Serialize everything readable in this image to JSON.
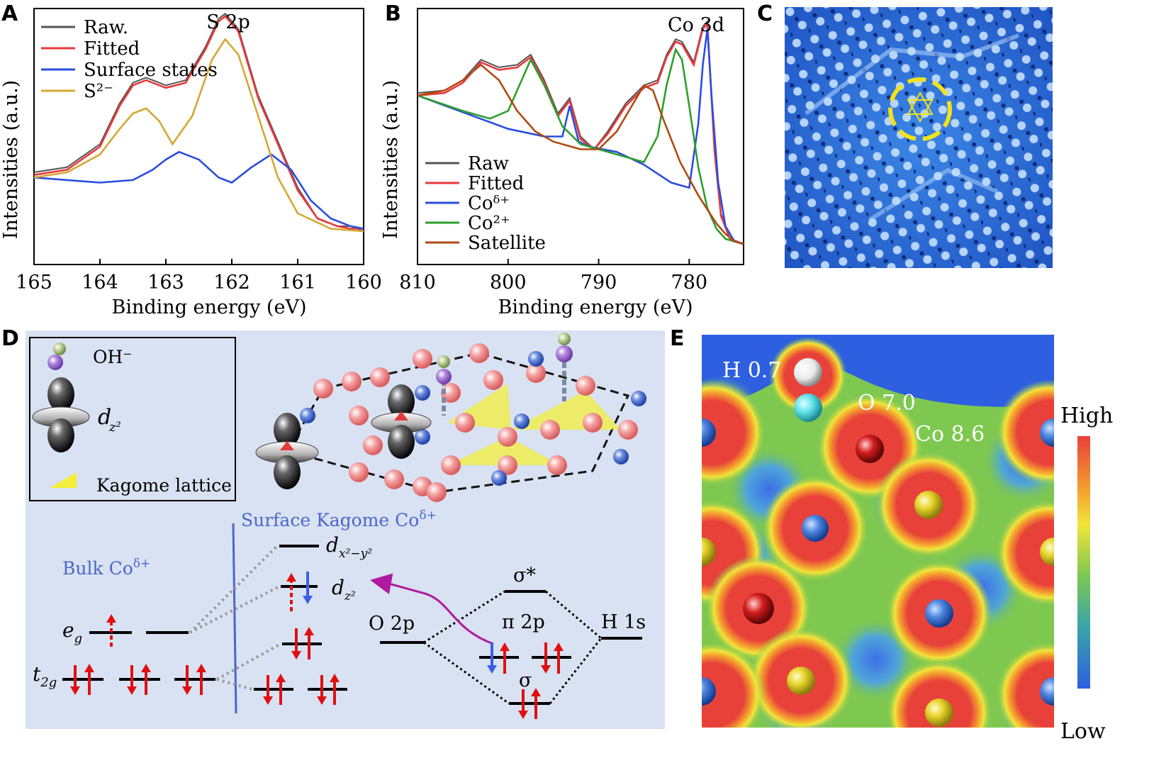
{
  "panels": {
    "a": "A",
    "b": "B",
    "c": "C",
    "d": "D",
    "e": "E"
  },
  "chart_data": [
    {
      "type": "line",
      "title": "S 2p",
      "xlabel": "Binding energy (eV)",
      "ylabel": "Intensities (a.u.)",
      "xlim": [
        165,
        160
      ],
      "ylim": [
        0,
        100
      ],
      "x_ticks": [
        "165",
        "164",
        "163",
        "162",
        "161",
        "160"
      ],
      "legend_position": "top-left",
      "series": [
        {
          "name": "Raw.",
          "color": "#555555",
          "x": [
            165,
            164.5,
            164,
            163.7,
            163.5,
            163.3,
            163,
            162.7,
            162.4,
            162.2,
            162.1,
            161.9,
            161.6,
            161.3,
            161,
            160.7,
            160.4,
            160.2,
            160
          ],
          "y": [
            36,
            38,
            47,
            63,
            71,
            73,
            70,
            72,
            85,
            96,
            98,
            92,
            66,
            48,
            30,
            18,
            15,
            15,
            13
          ]
        },
        {
          "name": "Fitted",
          "color": "#e8383b",
          "x": [
            165,
            164.5,
            164,
            163.7,
            163.5,
            163.3,
            163,
            162.7,
            162.4,
            162.2,
            162.1,
            161.9,
            161.6,
            161.3,
            161,
            160.7,
            160.4,
            160.2,
            160
          ],
          "y": [
            35,
            37,
            46,
            62,
            70,
            72,
            69,
            71,
            84,
            95,
            97,
            91,
            65,
            47,
            29,
            18,
            15,
            14,
            14
          ]
        },
        {
          "name": "Surface states",
          "color": "#2a4de0",
          "x": [
            165,
            164.5,
            164,
            163.5,
            163.2,
            163,
            162.8,
            162.5,
            162.2,
            162,
            161.7,
            161.4,
            161.1,
            160.8,
            160.5,
            160.2,
            160
          ],
          "y": [
            34,
            33,
            32,
            33,
            37,
            41,
            44,
            41,
            34,
            32,
            38,
            43,
            37,
            25,
            18,
            15,
            14
          ]
        },
        {
          "name": "S²⁻",
          "color": "#d4a832",
          "x": [
            165,
            164.5,
            164,
            163.7,
            163.5,
            163.3,
            163.1,
            162.9,
            162.6,
            162.3,
            162.1,
            161.9,
            161.6,
            161.3,
            161,
            160.5,
            160
          ],
          "y": [
            34,
            36,
            43,
            53,
            59,
            61,
            56,
            47,
            58,
            80,
            88,
            82,
            58,
            34,
            20,
            14,
            13
          ]
        }
      ]
    },
    {
      "type": "line",
      "title": "Co 3d",
      "xlabel": "Binding energy (eV)",
      "ylabel": "Intensities (a.u.)",
      "xlim": [
        810,
        774
      ],
      "ylim": [
        0,
        100
      ],
      "x_ticks": [
        "810",
        "800",
        "790",
        "780"
      ],
      "legend_position": "bottom-left",
      "series": [
        {
          "name": "Raw",
          "color": "#555555",
          "x": [
            810,
            807,
            805,
            803,
            801,
            799,
            797.5,
            796,
            794.5,
            793.2,
            792,
            790.5,
            789,
            787,
            785,
            783.5,
            782.5,
            781.5,
            780.8,
            779.5,
            778.5,
            778,
            777.2,
            776.5,
            775.5,
            774
          ],
          "y": [
            67,
            68,
            72,
            80,
            77,
            78,
            82,
            72,
            59,
            65,
            50,
            45,
            52,
            63,
            70,
            72,
            82,
            88,
            87,
            79,
            93,
            95,
            45,
            20,
            10,
            8
          ]
        },
        {
          "name": "Fitted",
          "color": "#e8383b",
          "x": [
            810,
            807,
            805,
            803,
            801,
            799,
            797.5,
            796,
            794.5,
            793.2,
            792,
            790.5,
            789,
            787,
            785,
            783.5,
            782.5,
            781.5,
            780.8,
            779.5,
            778.5,
            778,
            777.2,
            776.5,
            775.5,
            774
          ],
          "y": [
            66,
            67,
            71,
            79,
            76,
            77,
            81,
            71,
            58,
            64,
            49,
            45,
            51,
            62,
            69,
            71,
            81,
            87,
            86,
            78,
            92,
            94,
            44,
            19,
            10,
            8
          ]
        },
        {
          "name": "Coᵟ⁺",
          "color": "#2a4de0",
          "x": [
            810,
            800,
            796,
            794,
            793.2,
            792.2,
            791,
            788,
            785,
            782,
            780,
            779,
            778.5,
            778,
            777.5,
            776.8,
            776,
            775,
            774
          ],
          "y": [
            66,
            53,
            50,
            50,
            62,
            48,
            46,
            44,
            39,
            32,
            30,
            55,
            78,
            92,
            64,
            32,
            15,
            9,
            8
          ]
        },
        {
          "name": "Co²⁺",
          "color": "#2e9e2e",
          "x": [
            810,
            805,
            802,
            800,
            798.5,
            797.5,
            796,
            794,
            792,
            790,
            787,
            785,
            783.5,
            782.5,
            781.5,
            780.8,
            780,
            779,
            778,
            777,
            776,
            774
          ],
          "y": [
            66,
            60,
            57,
            60,
            72,
            80,
            70,
            54,
            47,
            45,
            42,
            40,
            50,
            70,
            84,
            80,
            62,
            38,
            22,
            14,
            10,
            8
          ]
        },
        {
          "name": "Satellite",
          "color": "#b04a12",
          "x": [
            810,
            807,
            805,
            803,
            801,
            799,
            797,
            795,
            792,
            790,
            788,
            786,
            785,
            784,
            783,
            781,
            779,
            777,
            776,
            775,
            774
          ],
          "y": [
            66,
            68,
            72,
            78,
            72,
            60,
            52,
            48,
            45,
            45,
            52,
            64,
            70,
            68,
            58,
            40,
            27,
            16,
            12,
            9,
            8
          ]
        }
      ]
    }
  ],
  "panel_d": {
    "legend": {
      "oh": "OH⁻",
      "dz2": "d",
      "dz2_sub": "z²",
      "kagome": "Kagome lattice"
    },
    "surface_label": "Surface Kagome Co",
    "bulk_label": "Bulk Co",
    "delta_plus": "δ+",
    "dx2y2": "d",
    "dx2y2_sub": "x²−y²",
    "dz2_level": "d",
    "dz2_level_sub": "z²",
    "eg": "e",
    "eg_sub": "g",
    "t2g": "t",
    "t2g_sub": "2g",
    "o2p": "O 2p",
    "h1s": "H 1s",
    "sigma_star": "σ*",
    "pi2p": "π 2p",
    "sigma": "σ"
  },
  "panel_e": {
    "h_label": "H  0.7",
    "o_label": "O  7.0",
    "co_label": "Co  8.6",
    "high": "High",
    "low": "Low"
  },
  "colors": {
    "panel_d_bg": "#d8e2f2",
    "map_red": "#e8413a",
    "map_green": "#7ec850",
    "map_blue": "#2d5fe0",
    "stm_blue": "#2a6fd8"
  }
}
